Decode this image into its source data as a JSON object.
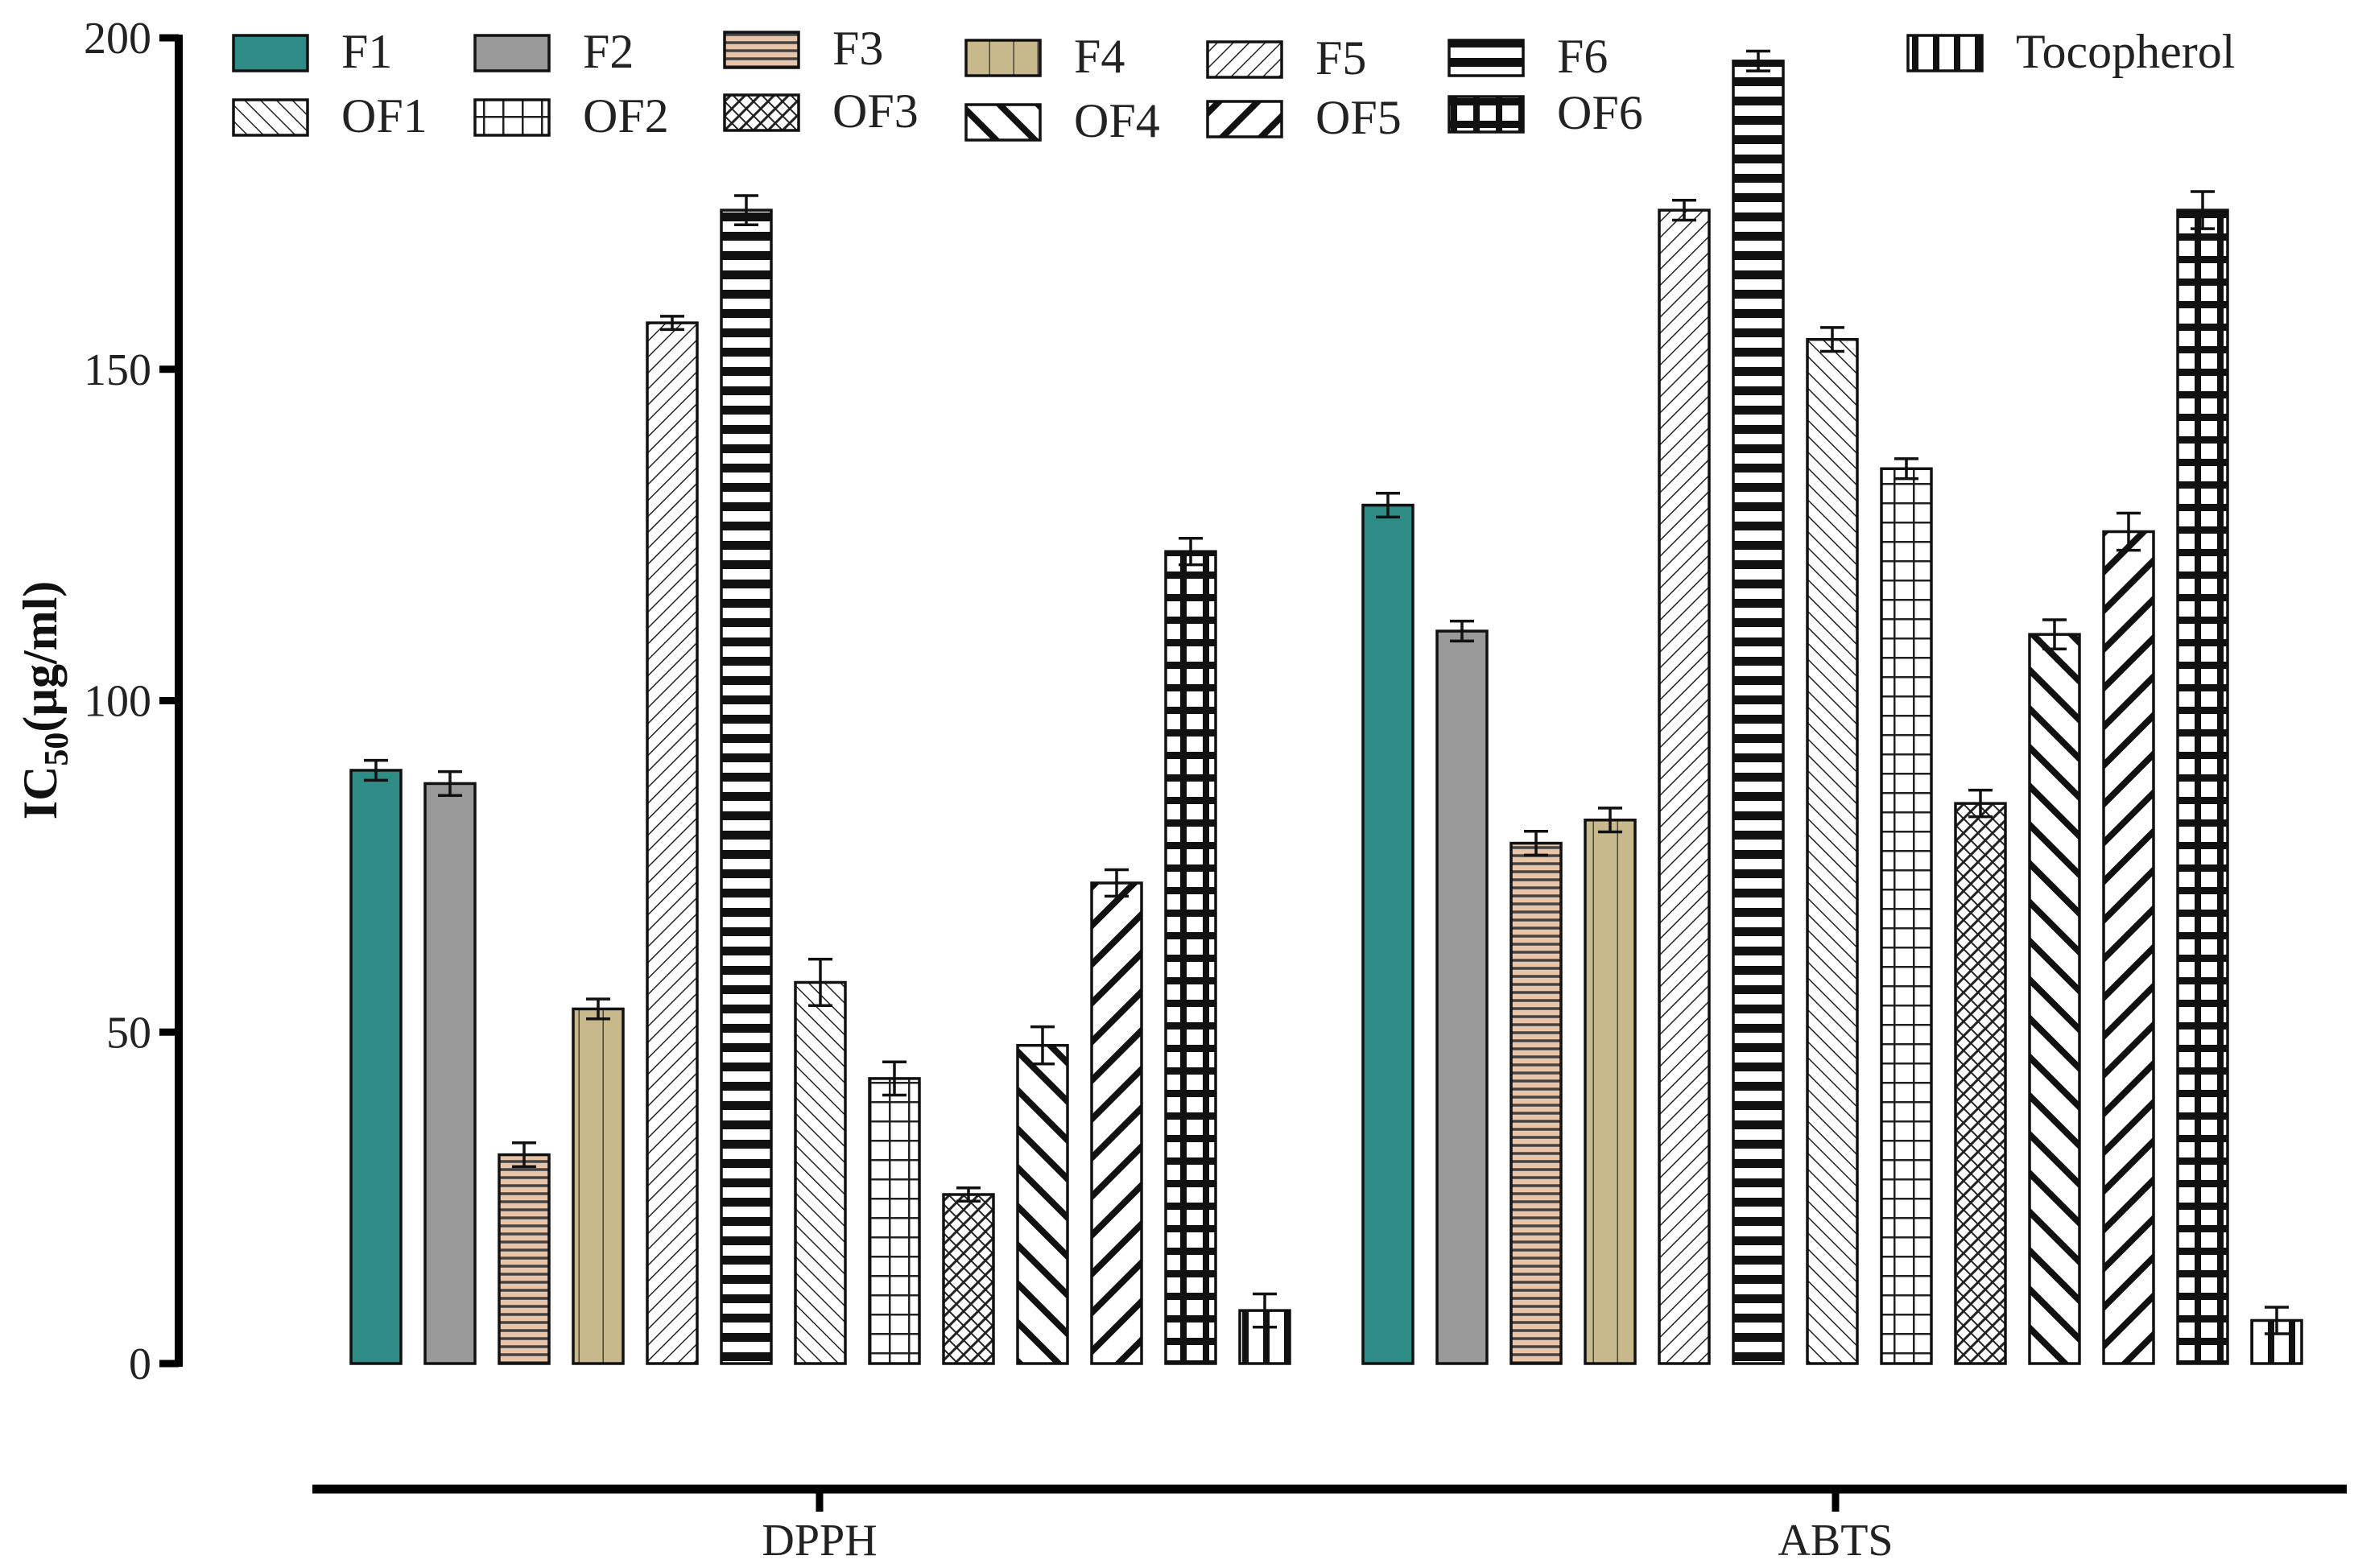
{
  "chart_data": {
    "type": "bar",
    "title": "",
    "xlabel": "",
    "ylabel": "IC50(µg/ml)",
    "ylabel_main": "IC",
    "ylabel_sub": "50",
    "ylabel_unit": "(µg/ml)",
    "ylim": [
      0,
      200
    ],
    "yticks": [
      0,
      50,
      100,
      150,
      200
    ],
    "grid": false,
    "legend_position": "top",
    "categories": [
      "DPPH",
      "ABTS"
    ],
    "series": [
      {
        "name": "F1",
        "pattern": "solid-teal",
        "color": "#2e8b86",
        "values": [
          89.5,
          129.5
        ],
        "errors": [
          1.5,
          1.8
        ]
      },
      {
        "name": "F2",
        "pattern": "solid-gray",
        "color": "#999999",
        "values": [
          87.5,
          110.5
        ],
        "errors": [
          1.8,
          1.5
        ]
      },
      {
        "name": "F3",
        "pattern": "hstripes-peach",
        "color": "#e8c4a8",
        "values": [
          31.5,
          78.5
        ],
        "errors": [
          1.8,
          1.8
        ]
      },
      {
        "name": "F4",
        "pattern": "vstripes-tan",
        "color": "#c8b98c",
        "values": [
          53.5,
          82.0
        ],
        "errors": [
          1.5,
          1.8
        ]
      },
      {
        "name": "F5",
        "pattern": "diag-fine",
        "color": "#ffffff",
        "values": [
          157.0,
          174.0
        ],
        "errors": [
          1.0,
          1.5
        ]
      },
      {
        "name": "F6",
        "pattern": "hstripes-bold",
        "color": "#ffffff",
        "values": [
          174.0,
          196.5
        ],
        "errors": [
          2.2,
          1.5
        ]
      },
      {
        "name": "OF1",
        "pattern": "backdiag-fine",
        "color": "#ffffff",
        "values": [
          57.5,
          154.5
        ],
        "errors": [
          3.5,
          1.8
        ]
      },
      {
        "name": "OF2",
        "pattern": "grid-fine",
        "color": "#ffffff",
        "values": [
          43.0,
          135.0
        ],
        "errors": [
          2.5,
          1.5
        ]
      },
      {
        "name": "OF3",
        "pattern": "crosshatch",
        "color": "#ffffff",
        "values": [
          25.5,
          84.5
        ],
        "errors": [
          1.0,
          2.0
        ]
      },
      {
        "name": "OF4",
        "pattern": "backdiag-bold",
        "color": "#ffffff",
        "values": [
          48.0,
          110.0
        ],
        "errors": [
          2.8,
          2.2
        ]
      },
      {
        "name": "OF5",
        "pattern": "diag-bold",
        "color": "#ffffff",
        "values": [
          72.5,
          125.5
        ],
        "errors": [
          2.0,
          2.8
        ]
      },
      {
        "name": "OF6",
        "pattern": "grid-bold",
        "color": "#ffffff",
        "values": [
          122.5,
          174.0
        ],
        "errors": [
          2.0,
          2.8
        ]
      },
      {
        "name": "Tocopherol",
        "pattern": "vstripes-bold",
        "color": "#ffffff",
        "values": [
          8.0,
          6.5
        ],
        "errors": [
          2.5,
          2.0
        ]
      }
    ]
  }
}
